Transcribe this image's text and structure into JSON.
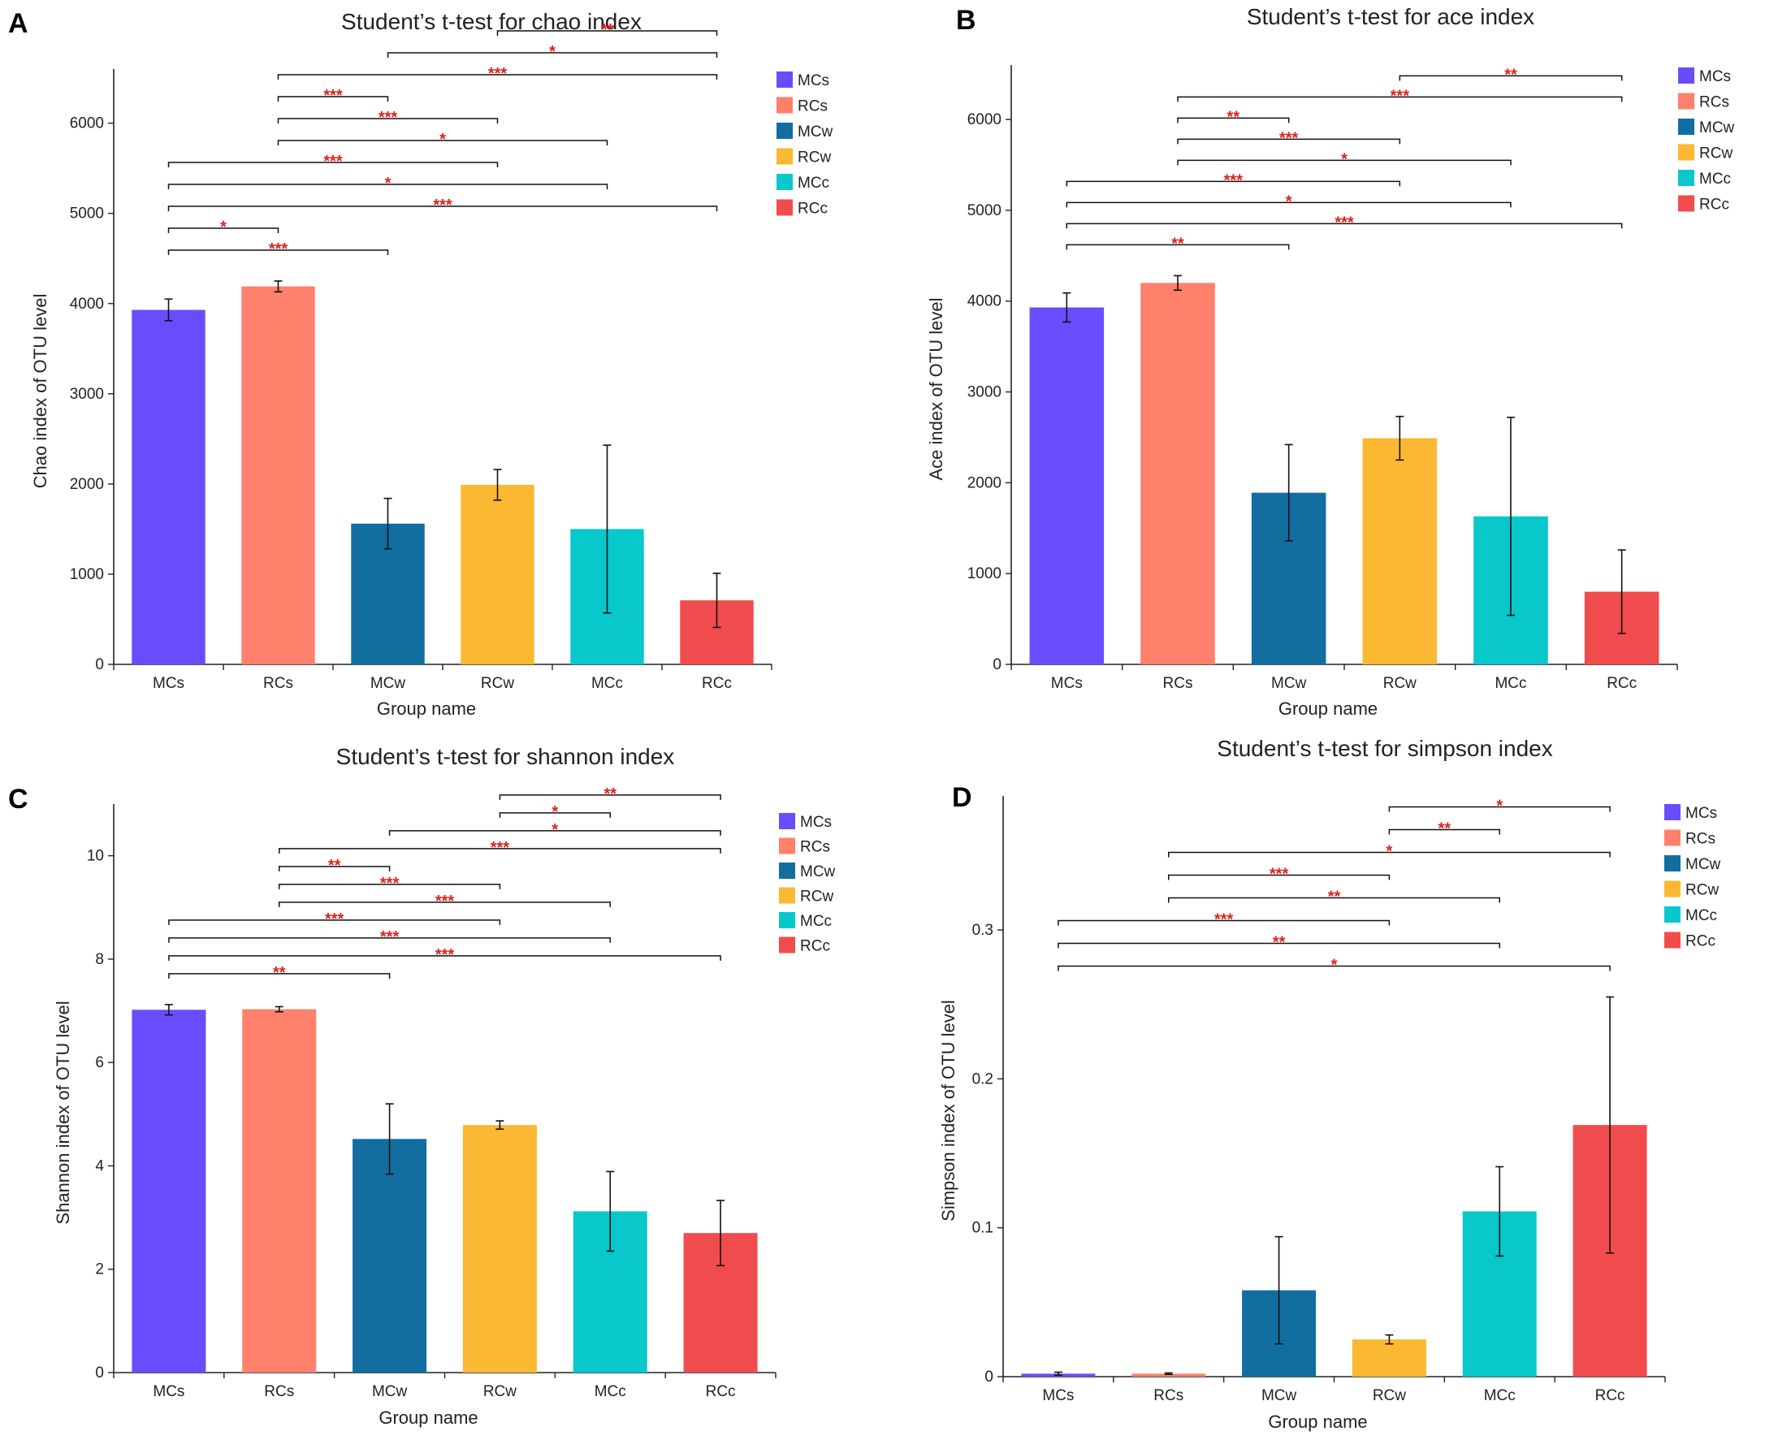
{
  "colors": {
    "MCs": "#6a4cff",
    "RCs": "#ff806b",
    "MCw": "#126da0",
    "RCw": "#fbb832",
    "MCc": "#08c8cc",
    "RCc": "#f14c4d",
    "significance": "#e0201a"
  },
  "chart_data": [
    {
      "panel": "A",
      "type": "bar",
      "title": "Student’s t-test for chao index",
      "xlabel": "Group name",
      "ylabel": "Chao index of OTU level",
      "ylim": [
        0,
        6600
      ],
      "yticks": [
        0,
        1000,
        2000,
        3000,
        4000,
        5000,
        6000
      ],
      "categories": [
        "MCs",
        "RCs",
        "MCw",
        "RCw",
        "MCc",
        "RCc"
      ],
      "values": [
        3930,
        4190,
        1560,
        1990,
        1500,
        710
      ],
      "errors": [
        120,
        60,
        280,
        170,
        930,
        300
      ],
      "legend": [
        "MCs",
        "RCs",
        "MCw",
        "RCw",
        "MCc",
        "RCc"
      ],
      "comparisons": [
        {
          "from": 0,
          "to": 2,
          "label": "***"
        },
        {
          "from": 0,
          "to": 1,
          "label": "*"
        },
        {
          "from": 0,
          "to": 5,
          "label": "***"
        },
        {
          "from": 0,
          "to": 4,
          "label": "*"
        },
        {
          "from": 0,
          "to": 3,
          "label": "***"
        },
        {
          "from": 1,
          "to": 4,
          "label": "*"
        },
        {
          "from": 1,
          "to": 3,
          "label": "***"
        },
        {
          "from": 1,
          "to": 2,
          "label": "***"
        },
        {
          "from": 1,
          "to": 5,
          "label": "***"
        },
        {
          "from": 2,
          "to": 5,
          "label": "*"
        },
        {
          "from": 3,
          "to": 5,
          "label": "**"
        }
      ]
    },
    {
      "panel": "B",
      "type": "bar",
      "title": "Student’s t-test for ace index",
      "xlabel": "Group name",
      "ylabel": "Ace index of OTU level",
      "ylim": [
        0,
        6600
      ],
      "yticks": [
        0,
        1000,
        2000,
        3000,
        4000,
        5000,
        6000
      ],
      "categories": [
        "MCs",
        "RCs",
        "MCw",
        "RCw",
        "MCc",
        "RCc"
      ],
      "values": [
        3930,
        4200,
        1890,
        2490,
        1630,
        800
      ],
      "errors": [
        160,
        80,
        530,
        240,
        1090,
        460
      ],
      "legend": [
        "MCs",
        "RCs",
        "MCw",
        "RCw",
        "MCc",
        "RCc"
      ],
      "comparisons": [
        {
          "from": 0,
          "to": 2,
          "label": "**"
        },
        {
          "from": 0,
          "to": 5,
          "label": "***"
        },
        {
          "from": 0,
          "to": 4,
          "label": "*"
        },
        {
          "from": 0,
          "to": 3,
          "label": "***"
        },
        {
          "from": 1,
          "to": 4,
          "label": "*"
        },
        {
          "from": 1,
          "to": 3,
          "label": "***"
        },
        {
          "from": 1,
          "to": 2,
          "label": "**"
        },
        {
          "from": 1,
          "to": 5,
          "label": "***"
        },
        {
          "from": 3,
          "to": 5,
          "label": "**"
        }
      ]
    },
    {
      "panel": "C",
      "type": "bar",
      "title": "Student’s t-test for shannon index",
      "xlabel": "Group name",
      "ylabel": "Shannon index of OTU level",
      "ylim": [
        0,
        11
      ],
      "yticks": [
        0,
        2,
        4,
        6,
        8,
        10
      ],
      "categories": [
        "MCs",
        "RCs",
        "MCw",
        "RCw",
        "MCc",
        "RCc"
      ],
      "values": [
        7.02,
        7.03,
        4.52,
        4.79,
        3.12,
        2.7
      ],
      "errors": [
        0.1,
        0.05,
        0.68,
        0.08,
        0.77,
        0.63
      ],
      "legend": [
        "MCs",
        "RCs",
        "MCw",
        "RCw",
        "MCc",
        "RCc"
      ],
      "comparisons": [
        {
          "from": 0,
          "to": 2,
          "label": "**"
        },
        {
          "from": 0,
          "to": 5,
          "label": "***"
        },
        {
          "from": 0,
          "to": 4,
          "label": "***"
        },
        {
          "from": 0,
          "to": 3,
          "label": "***"
        },
        {
          "from": 1,
          "to": 4,
          "label": "***"
        },
        {
          "from": 1,
          "to": 3,
          "label": "***"
        },
        {
          "from": 1,
          "to": 2,
          "label": "**"
        },
        {
          "from": 1,
          "to": 5,
          "label": "***"
        },
        {
          "from": 2,
          "to": 5,
          "label": "*"
        },
        {
          "from": 3,
          "to": 4,
          "label": "*"
        },
        {
          "from": 3,
          "to": 5,
          "label": "**"
        }
      ]
    },
    {
      "panel": "D",
      "type": "bar",
      "title": "Student’s t-test for simpson index",
      "xlabel": "Group name",
      "ylabel": "Simpson index of OTU level",
      "ylim": [
        0,
        0.39
      ],
      "yticks": [
        0,
        0.1,
        0.2,
        0.3
      ],
      "categories": [
        "MCs",
        "RCs",
        "MCw",
        "RCw",
        "MCc",
        "RCc"
      ],
      "values": [
        0.002,
        0.002,
        0.058,
        0.025,
        0.111,
        0.169
      ],
      "errors": [
        0.001,
        0.0005,
        0.036,
        0.003,
        0.03,
        0.086
      ],
      "legend": [
        "MCs",
        "RCs",
        "MCw",
        "RCw",
        "MCc",
        "RCc"
      ],
      "comparisons": [
        {
          "from": 0,
          "to": 5,
          "label": "*"
        },
        {
          "from": 0,
          "to": 4,
          "label": "**"
        },
        {
          "from": 0,
          "to": 3,
          "label": "***"
        },
        {
          "from": 1,
          "to": 4,
          "label": "**"
        },
        {
          "from": 1,
          "to": 3,
          "label": "***"
        },
        {
          "from": 1,
          "to": 5,
          "label": "*"
        },
        {
          "from": 3,
          "to": 4,
          "label": "**"
        },
        {
          "from": 3,
          "to": 5,
          "label": "*"
        }
      ]
    }
  ]
}
